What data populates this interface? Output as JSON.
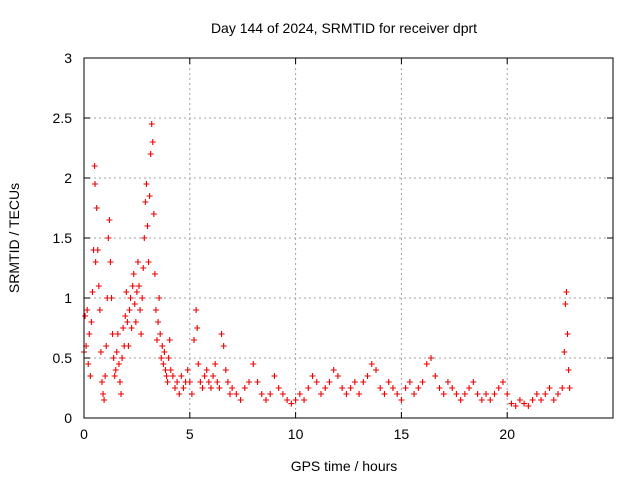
{
  "chart_data": {
    "type": "scatter",
    "title": "Day 144 of 2024, SRMTID for receiver dprt",
    "xlabel": "GPS time / hours",
    "ylabel": "SRMTID / TECUs",
    "xlim": [
      0,
      25
    ],
    "ylim": [
      0,
      3
    ],
    "xticks": [
      0,
      5,
      10,
      15,
      20
    ],
    "xtick_labels": [
      "0",
      "5",
      "10",
      "15",
      "20"
    ],
    "yticks": [
      0,
      0.5,
      1,
      1.5,
      2,
      2.5,
      3
    ],
    "ytick_labels": [
      "0",
      "0.5",
      "1",
      "1.5",
      "2",
      "2.5",
      "3"
    ],
    "grid": true,
    "marker": "+",
    "color": "#ee0000",
    "series": [
      {
        "name": "SRMTID",
        "points": [
          [
            0.0,
            0.55
          ],
          [
            0.05,
            0.85
          ],
          [
            0.1,
            0.6
          ],
          [
            0.15,
            0.9
          ],
          [
            0.2,
            0.45
          ],
          [
            0.25,
            0.7
          ],
          [
            0.3,
            0.35
          ],
          [
            0.35,
            0.8
          ],
          [
            0.4,
            1.05
          ],
          [
            0.45,
            1.4
          ],
          [
            0.5,
            2.1
          ],
          [
            0.52,
            1.95
          ],
          [
            0.55,
            1.3
          ],
          [
            0.6,
            1.75
          ],
          [
            0.65,
            1.4
          ],
          [
            0.7,
            1.1
          ],
          [
            0.75,
            0.9
          ],
          [
            0.8,
            0.55
          ],
          [
            0.85,
            0.3
          ],
          [
            0.9,
            0.2
          ],
          [
            0.95,
            0.15
          ],
          [
            1.0,
            0.35
          ],
          [
            1.05,
            0.6
          ],
          [
            1.1,
            1.0
          ],
          [
            1.15,
            1.5
          ],
          [
            1.2,
            1.65
          ],
          [
            1.25,
            1.3
          ],
          [
            1.3,
            1.0
          ],
          [
            1.35,
            0.7
          ],
          [
            1.4,
            0.5
          ],
          [
            1.45,
            0.35
          ],
          [
            1.5,
            0.4
          ],
          [
            1.55,
            0.55
          ],
          [
            1.6,
            0.7
          ],
          [
            1.65,
            0.45
          ],
          [
            1.7,
            0.3
          ],
          [
            1.75,
            0.2
          ],
          [
            1.8,
            0.5
          ],
          [
            1.85,
            0.75
          ],
          [
            1.9,
            0.6
          ],
          [
            1.95,
            0.85
          ],
          [
            2.0,
            1.05
          ],
          [
            2.05,
            0.8
          ],
          [
            2.1,
            0.6
          ],
          [
            2.15,
            0.9
          ],
          [
            2.2,
            1.0
          ],
          [
            2.25,
            0.75
          ],
          [
            2.3,
            1.1
          ],
          [
            2.35,
            1.2
          ],
          [
            2.4,
            0.95
          ],
          [
            2.45,
            0.8
          ],
          [
            2.5,
            1.05
          ],
          [
            2.55,
            1.3
          ],
          [
            2.6,
            1.1
          ],
          [
            2.65,
            0.9
          ],
          [
            2.7,
            0.7
          ],
          [
            2.75,
            1.0
          ],
          [
            2.8,
            1.25
          ],
          [
            2.85,
            1.5
          ],
          [
            2.9,
            1.8
          ],
          [
            2.95,
            1.95
          ],
          [
            3.0,
            1.6
          ],
          [
            3.05,
            1.3
          ],
          [
            3.1,
            1.85
          ],
          [
            3.15,
            2.2
          ],
          [
            3.2,
            2.45
          ],
          [
            3.25,
            2.3
          ],
          [
            3.3,
            1.7
          ],
          [
            3.35,
            1.2
          ],
          [
            3.4,
            0.9
          ],
          [
            3.45,
            0.65
          ],
          [
            3.5,
            0.8
          ],
          [
            3.55,
            1.0
          ],
          [
            3.6,
            0.7
          ],
          [
            3.65,
            0.5
          ],
          [
            3.7,
            0.6
          ],
          [
            3.75,
            0.45
          ],
          [
            3.8,
            0.55
          ],
          [
            3.85,
            0.4
          ],
          [
            3.9,
            0.35
          ],
          [
            3.95,
            0.3
          ],
          [
            4.0,
            0.5
          ],
          [
            4.05,
            0.65
          ],
          [
            4.1,
            0.4
          ],
          [
            4.2,
            0.35
          ],
          [
            4.3,
            0.25
          ],
          [
            4.4,
            0.3
          ],
          [
            4.5,
            0.2
          ],
          [
            4.6,
            0.35
          ],
          [
            4.7,
            0.25
          ],
          [
            4.8,
            0.3
          ],
          [
            4.9,
            0.4
          ],
          [
            5.0,
            0.3
          ],
          [
            5.1,
            0.2
          ],
          [
            5.2,
            0.65
          ],
          [
            5.3,
            0.9
          ],
          [
            5.35,
            0.75
          ],
          [
            5.4,
            0.45
          ],
          [
            5.5,
            0.3
          ],
          [
            5.6,
            0.25
          ],
          [
            5.7,
            0.35
          ],
          [
            5.8,
            0.4
          ],
          [
            5.9,
            0.3
          ],
          [
            6.0,
            0.25
          ],
          [
            6.1,
            0.35
          ],
          [
            6.2,
            0.45
          ],
          [
            6.3,
            0.3
          ],
          [
            6.4,
            0.25
          ],
          [
            6.5,
            0.7
          ],
          [
            6.6,
            0.6
          ],
          [
            6.7,
            0.4
          ],
          [
            6.8,
            0.3
          ],
          [
            6.9,
            0.2
          ],
          [
            7.0,
            0.25
          ],
          [
            7.2,
            0.2
          ],
          [
            7.4,
            0.15
          ],
          [
            7.6,
            0.25
          ],
          [
            7.8,
            0.3
          ],
          [
            8.0,
            0.45
          ],
          [
            8.2,
            0.3
          ],
          [
            8.4,
            0.2
          ],
          [
            8.6,
            0.15
          ],
          [
            8.8,
            0.2
          ],
          [
            9.0,
            0.35
          ],
          [
            9.2,
            0.25
          ],
          [
            9.4,
            0.2
          ],
          [
            9.6,
            0.15
          ],
          [
            9.8,
            0.12
          ],
          [
            10.0,
            0.15
          ],
          [
            10.2,
            0.2
          ],
          [
            10.4,
            0.15
          ],
          [
            10.6,
            0.25
          ],
          [
            10.8,
            0.35
          ],
          [
            11.0,
            0.3
          ],
          [
            11.2,
            0.2
          ],
          [
            11.4,
            0.25
          ],
          [
            11.6,
            0.3
          ],
          [
            11.8,
            0.4
          ],
          [
            12.0,
            0.35
          ],
          [
            12.2,
            0.25
          ],
          [
            12.4,
            0.2
          ],
          [
            12.6,
            0.25
          ],
          [
            12.8,
            0.3
          ],
          [
            13.0,
            0.2
          ],
          [
            13.2,
            0.3
          ],
          [
            13.4,
            0.35
          ],
          [
            13.6,
            0.45
          ],
          [
            13.8,
            0.4
          ],
          [
            14.0,
            0.25
          ],
          [
            14.2,
            0.2
          ],
          [
            14.4,
            0.3
          ],
          [
            14.6,
            0.25
          ],
          [
            14.8,
            0.2
          ],
          [
            15.0,
            0.15
          ],
          [
            15.2,
            0.25
          ],
          [
            15.4,
            0.3
          ],
          [
            15.6,
            0.2
          ],
          [
            15.8,
            0.25
          ],
          [
            16.0,
            0.3
          ],
          [
            16.2,
            0.45
          ],
          [
            16.4,
            0.5
          ],
          [
            16.6,
            0.35
          ],
          [
            16.8,
            0.25
          ],
          [
            17.0,
            0.2
          ],
          [
            17.2,
            0.3
          ],
          [
            17.4,
            0.25
          ],
          [
            17.6,
            0.2
          ],
          [
            17.8,
            0.15
          ],
          [
            18.0,
            0.2
          ],
          [
            18.2,
            0.25
          ],
          [
            18.4,
            0.3
          ],
          [
            18.6,
            0.2
          ],
          [
            18.8,
            0.15
          ],
          [
            19.0,
            0.2
          ],
          [
            19.2,
            0.15
          ],
          [
            19.4,
            0.2
          ],
          [
            19.6,
            0.25
          ],
          [
            19.8,
            0.3
          ],
          [
            20.0,
            0.2
          ],
          [
            20.2,
            0.12
          ],
          [
            20.4,
            0.1
          ],
          [
            20.6,
            0.15
          ],
          [
            20.8,
            0.12
          ],
          [
            21.0,
            0.1
          ],
          [
            21.2,
            0.15
          ],
          [
            21.4,
            0.2
          ],
          [
            21.6,
            0.15
          ],
          [
            21.8,
            0.2
          ],
          [
            22.0,
            0.25
          ],
          [
            22.2,
            0.15
          ],
          [
            22.4,
            0.2
          ],
          [
            22.6,
            0.25
          ],
          [
            22.7,
            0.55
          ],
          [
            22.75,
            0.95
          ],
          [
            22.8,
            1.05
          ],
          [
            22.85,
            0.7
          ],
          [
            22.9,
            0.4
          ],
          [
            22.95,
            0.25
          ]
        ]
      }
    ]
  }
}
